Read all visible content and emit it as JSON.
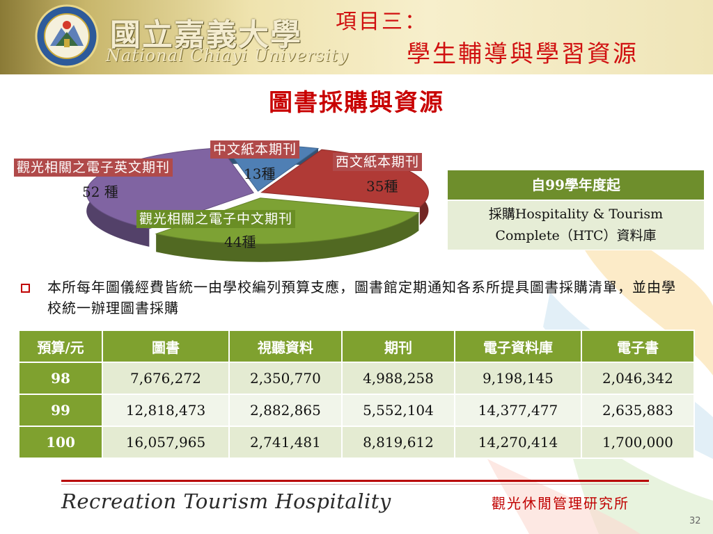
{
  "header": {
    "univ_name": "國立嘉義大學",
    "univ_name_en": "National Chiayi University",
    "title_line1": "項目三：",
    "title_line2": "學生輔導與學習資源"
  },
  "page_title": "圖書採購與資源",
  "chart_data": {
    "type": "pie",
    "unit": "種",
    "slices": [
      {
        "label": "中文紙本期刊",
        "value": 13,
        "value_text": "13種",
        "color": "#4f7fb4"
      },
      {
        "label": "西文紙本期刊",
        "value": 35,
        "value_text": "35種",
        "color": "#b03a36"
      },
      {
        "label": "觀光相關之電子中文期刊",
        "value": 44,
        "value_text": "44種",
        "color": "#7da234"
      },
      {
        "label": "觀光相關之電子英文期刊",
        "value": 52,
        "value_text": "52 種",
        "color": "#8064a2"
      }
    ]
  },
  "info_box": {
    "heading": "自99學年度起",
    "line1": "採購Hospitality & Tourism",
    "line2": "Complete（HTC）資料庫"
  },
  "bullet": {
    "text": "本所每年圖儀經費皆統一由學校編列預算支應，圖書館定期通知各系所提具圖書採購清單，並由學校統一辦理圖書採購"
  },
  "budget_table": {
    "headers": [
      "預算/元",
      "圖書",
      "視聽資料",
      "期刊",
      "電子資料庫",
      "電子書"
    ],
    "rows": [
      {
        "year": "98",
        "cells": [
          "7,676,272",
          "2,350,770",
          "4,988,258",
          "9,198,145",
          "2,046,342"
        ]
      },
      {
        "year": "99",
        "cells": [
          "12,818,473",
          "2,882,865",
          "5,552,104",
          "14,377,477",
          "2,635,883"
        ]
      },
      {
        "year": "100",
        "cells": [
          "16,057,965",
          "2,741,481",
          "8,819,612",
          "14,270,414",
          "1,700,000"
        ]
      }
    ]
  },
  "footer": {
    "logo_text": "Recreation Tourism Hospitality",
    "dept": "觀光休閒管理研究所",
    "page_number": "32"
  }
}
